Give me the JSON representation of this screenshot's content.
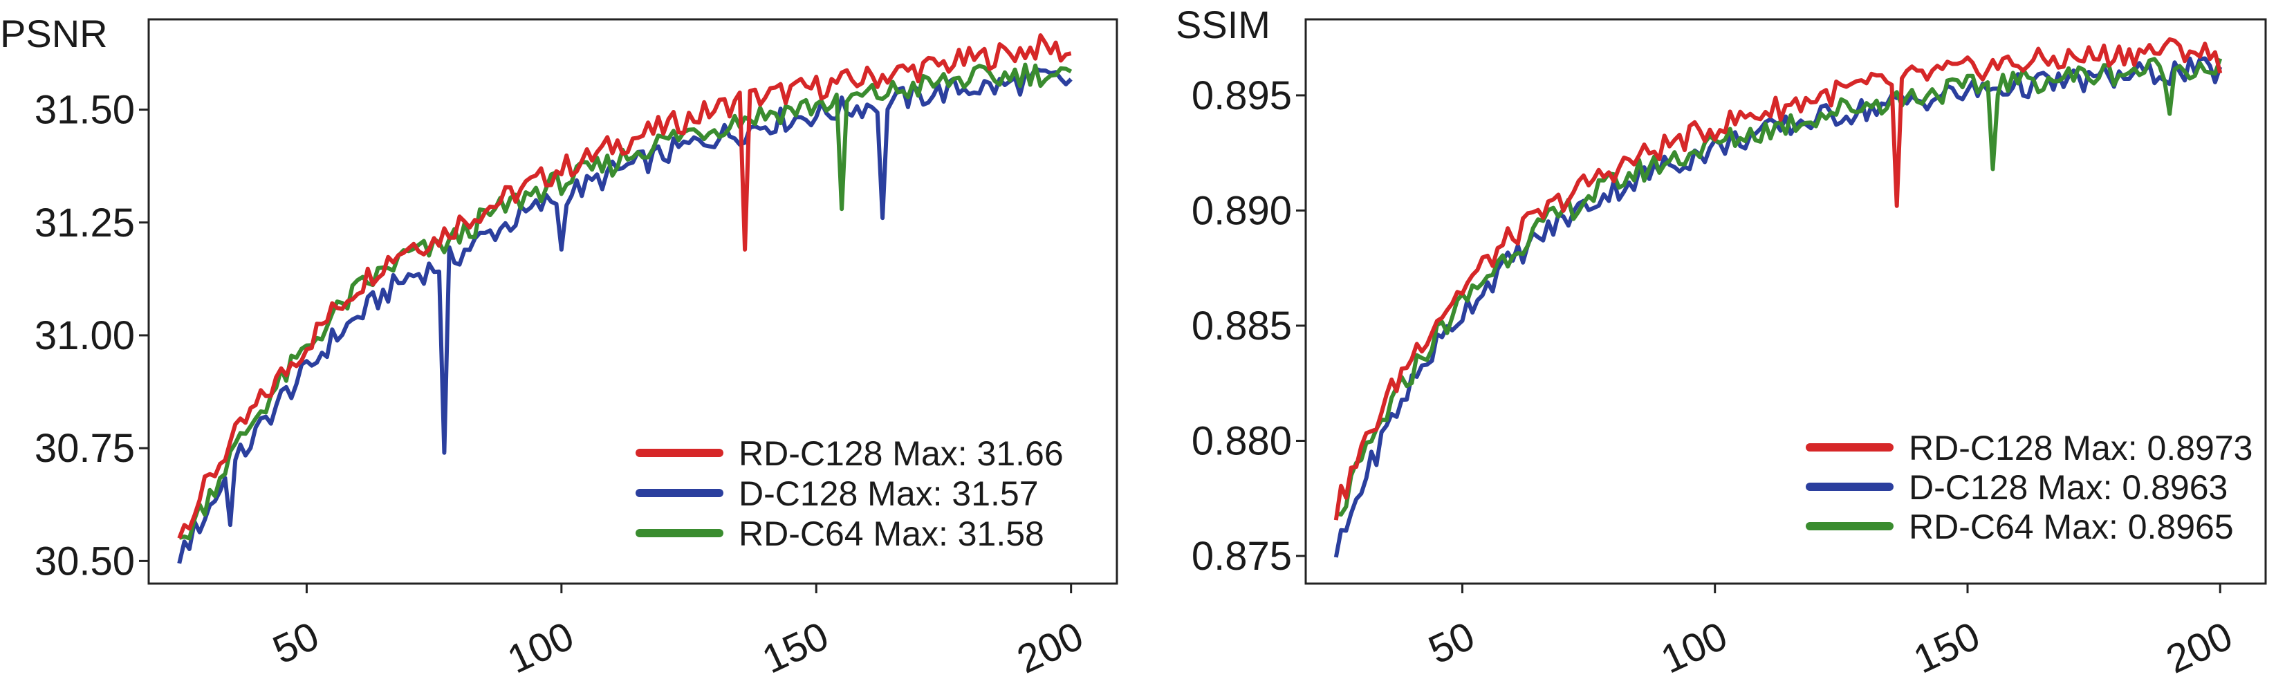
{
  "chart_data": [
    {
      "type": "line",
      "ylabel": "PSNR",
      "xlabel": "",
      "xlim": [
        19,
        209
      ],
      "ylim": [
        30.45,
        31.7
      ],
      "xticks": [
        "50",
        "100",
        "150",
        "200"
      ],
      "yticks": [
        "30.50",
        "30.75",
        "31.00",
        "31.25",
        "31.50"
      ],
      "legend_position": "bottom-right",
      "x": [
        25,
        30,
        35,
        40,
        45,
        50,
        55,
        60,
        65,
        70,
        75,
        80,
        85,
        90,
        95,
        100,
        105,
        110,
        115,
        120,
        125,
        130,
        135,
        140,
        145,
        150,
        155,
        160,
        165,
        170,
        175,
        180,
        185,
        190,
        195,
        200
      ],
      "series": [
        {
          "name": "RD-C128",
          "color": "#d62728",
          "legend_label": "RD-C128 Max: 31.66",
          "values": [
            30.56,
            30.66,
            30.76,
            30.84,
            30.91,
            30.98,
            31.05,
            31.11,
            31.16,
            31.2,
            31.21,
            31.25,
            31.28,
            31.31,
            31.34,
            31.37,
            31.39,
            31.42,
            31.44,
            31.46,
            31.48,
            31.5,
            31.52,
            31.53,
            31.54,
            31.55,
            31.56,
            31.57,
            31.58,
            31.59,
            31.6,
            31.61,
            31.62,
            31.63,
            31.64,
            31.62
          ]
        },
        {
          "name": "D-C128",
          "color": "#2b3f9e",
          "legend_label": "D-C128 Max: 31.57",
          "values": [
            30.51,
            30.6,
            30.7,
            30.78,
            30.86,
            30.92,
            30.99,
            31.04,
            31.09,
            31.13,
            31.15,
            31.18,
            31.22,
            31.25,
            31.28,
            31.31,
            31.33,
            31.36,
            31.38,
            31.4,
            31.42,
            31.44,
            31.45,
            31.47,
            31.48,
            31.49,
            31.5,
            31.51,
            31.52,
            31.53,
            31.54,
            31.55,
            31.55,
            31.56,
            31.57,
            31.56
          ]
        },
        {
          "name": "RD-C64",
          "color": "#3a8c2f",
          "legend_label": "RD-C64 Max: 31.58",
          "values": [
            30.53,
            30.63,
            30.73,
            30.82,
            30.9,
            30.97,
            31.04,
            31.1,
            31.14,
            31.18,
            31.19,
            31.22,
            31.26,
            31.29,
            31.32,
            31.34,
            31.36,
            31.38,
            31.41,
            31.43,
            31.45,
            31.46,
            31.48,
            31.49,
            31.5,
            31.51,
            31.52,
            31.53,
            31.54,
            31.55,
            31.56,
            31.57,
            31.57,
            31.58,
            31.58,
            31.57
          ]
        }
      ],
      "dips": [
        {
          "series": "D-C128",
          "x": 77,
          "y": 30.74
        },
        {
          "series": "RD-C128",
          "x": 136,
          "y": 31.19
        },
        {
          "series": "D-C128",
          "x": 163,
          "y": 31.26
        },
        {
          "series": "RD-C64",
          "x": 155,
          "y": 31.28
        },
        {
          "series": "D-C128",
          "x": 35,
          "y": 30.58
        },
        {
          "series": "D-C128",
          "x": 100,
          "y": 31.19
        }
      ]
    },
    {
      "type": "line",
      "ylabel": "SSIM",
      "xlabel": "",
      "xlim": [
        19,
        209
      ],
      "ylim": [
        0.8738,
        0.8983
      ],
      "xticks": [
        "50",
        "100",
        "150",
        "200"
      ],
      "yticks": [
        "0.875",
        "0.880",
        "0.885",
        "0.890",
        "0.895"
      ],
      "legend_position": "bottom-right",
      "x": [
        25,
        30,
        35,
        40,
        45,
        50,
        55,
        60,
        65,
        70,
        75,
        80,
        85,
        90,
        95,
        100,
        105,
        110,
        115,
        120,
        125,
        130,
        135,
        140,
        145,
        150,
        155,
        160,
        165,
        170,
        175,
        180,
        185,
        190,
        195,
        200
      ],
      "series": [
        {
          "name": "RD-C128",
          "color": "#d62728",
          "legend_label": "RD-C128 Max: 0.8973",
          "values": [
            0.877,
            0.8795,
            0.8818,
            0.8837,
            0.8853,
            0.8866,
            0.8878,
            0.8889,
            0.8897,
            0.8905,
            0.8912,
            0.8918,
            0.8923,
            0.8928,
            0.8932,
            0.8936,
            0.894,
            0.8943,
            0.8946,
            0.8949,
            0.8952,
            0.8954,
            0.8956,
            0.8958,
            0.896,
            0.8961,
            0.8963,
            0.8964,
            0.8965,
            0.8966,
            0.8967,
            0.8968,
            0.8969,
            0.897,
            0.897,
            0.8965
          ]
        },
        {
          "name": "D-C128",
          "color": "#2b3f9e",
          "legend_label": "D-C128 Max: 0.8963",
          "values": [
            0.875,
            0.878,
            0.8805,
            0.8825,
            0.8842,
            0.8856,
            0.8868,
            0.8879,
            0.8888,
            0.8896,
            0.8903,
            0.8909,
            0.8914,
            0.8919,
            0.8923,
            0.8927,
            0.8931,
            0.8934,
            0.8937,
            0.894,
            0.8942,
            0.8944,
            0.8946,
            0.8948,
            0.895,
            0.8951,
            0.8953,
            0.8954,
            0.8955,
            0.8956,
            0.8957,
            0.8958,
            0.8959,
            0.896,
            0.8961,
            0.896
          ]
        },
        {
          "name": "RD-C64",
          "color": "#3a8c2f",
          "legend_label": "RD-C64 Max: 0.8965",
          "values": [
            0.8765,
            0.879,
            0.8812,
            0.883,
            0.8846,
            0.886,
            0.8872,
            0.8883,
            0.8892,
            0.8899,
            0.8906,
            0.8912,
            0.8917,
            0.8921,
            0.8925,
            0.8929,
            0.8932,
            0.8935,
            0.8938,
            0.8941,
            0.8944,
            0.8946,
            0.8948,
            0.895,
            0.8952,
            0.8953,
            0.8955,
            0.8956,
            0.8957,
            0.8958,
            0.8959,
            0.896,
            0.8961,
            0.8962,
            0.8963,
            0.8962
          ]
        }
      ],
      "dips": [
        {
          "series": "RD-C128",
          "x": 136,
          "y": 0.8902
        },
        {
          "series": "RD-C64",
          "x": 155,
          "y": 0.8918
        },
        {
          "series": "D-C128",
          "x": 46,
          "y": 0.8845
        },
        {
          "series": "RD-C64",
          "x": 190,
          "y": 0.8942
        }
      ]
    }
  ]
}
